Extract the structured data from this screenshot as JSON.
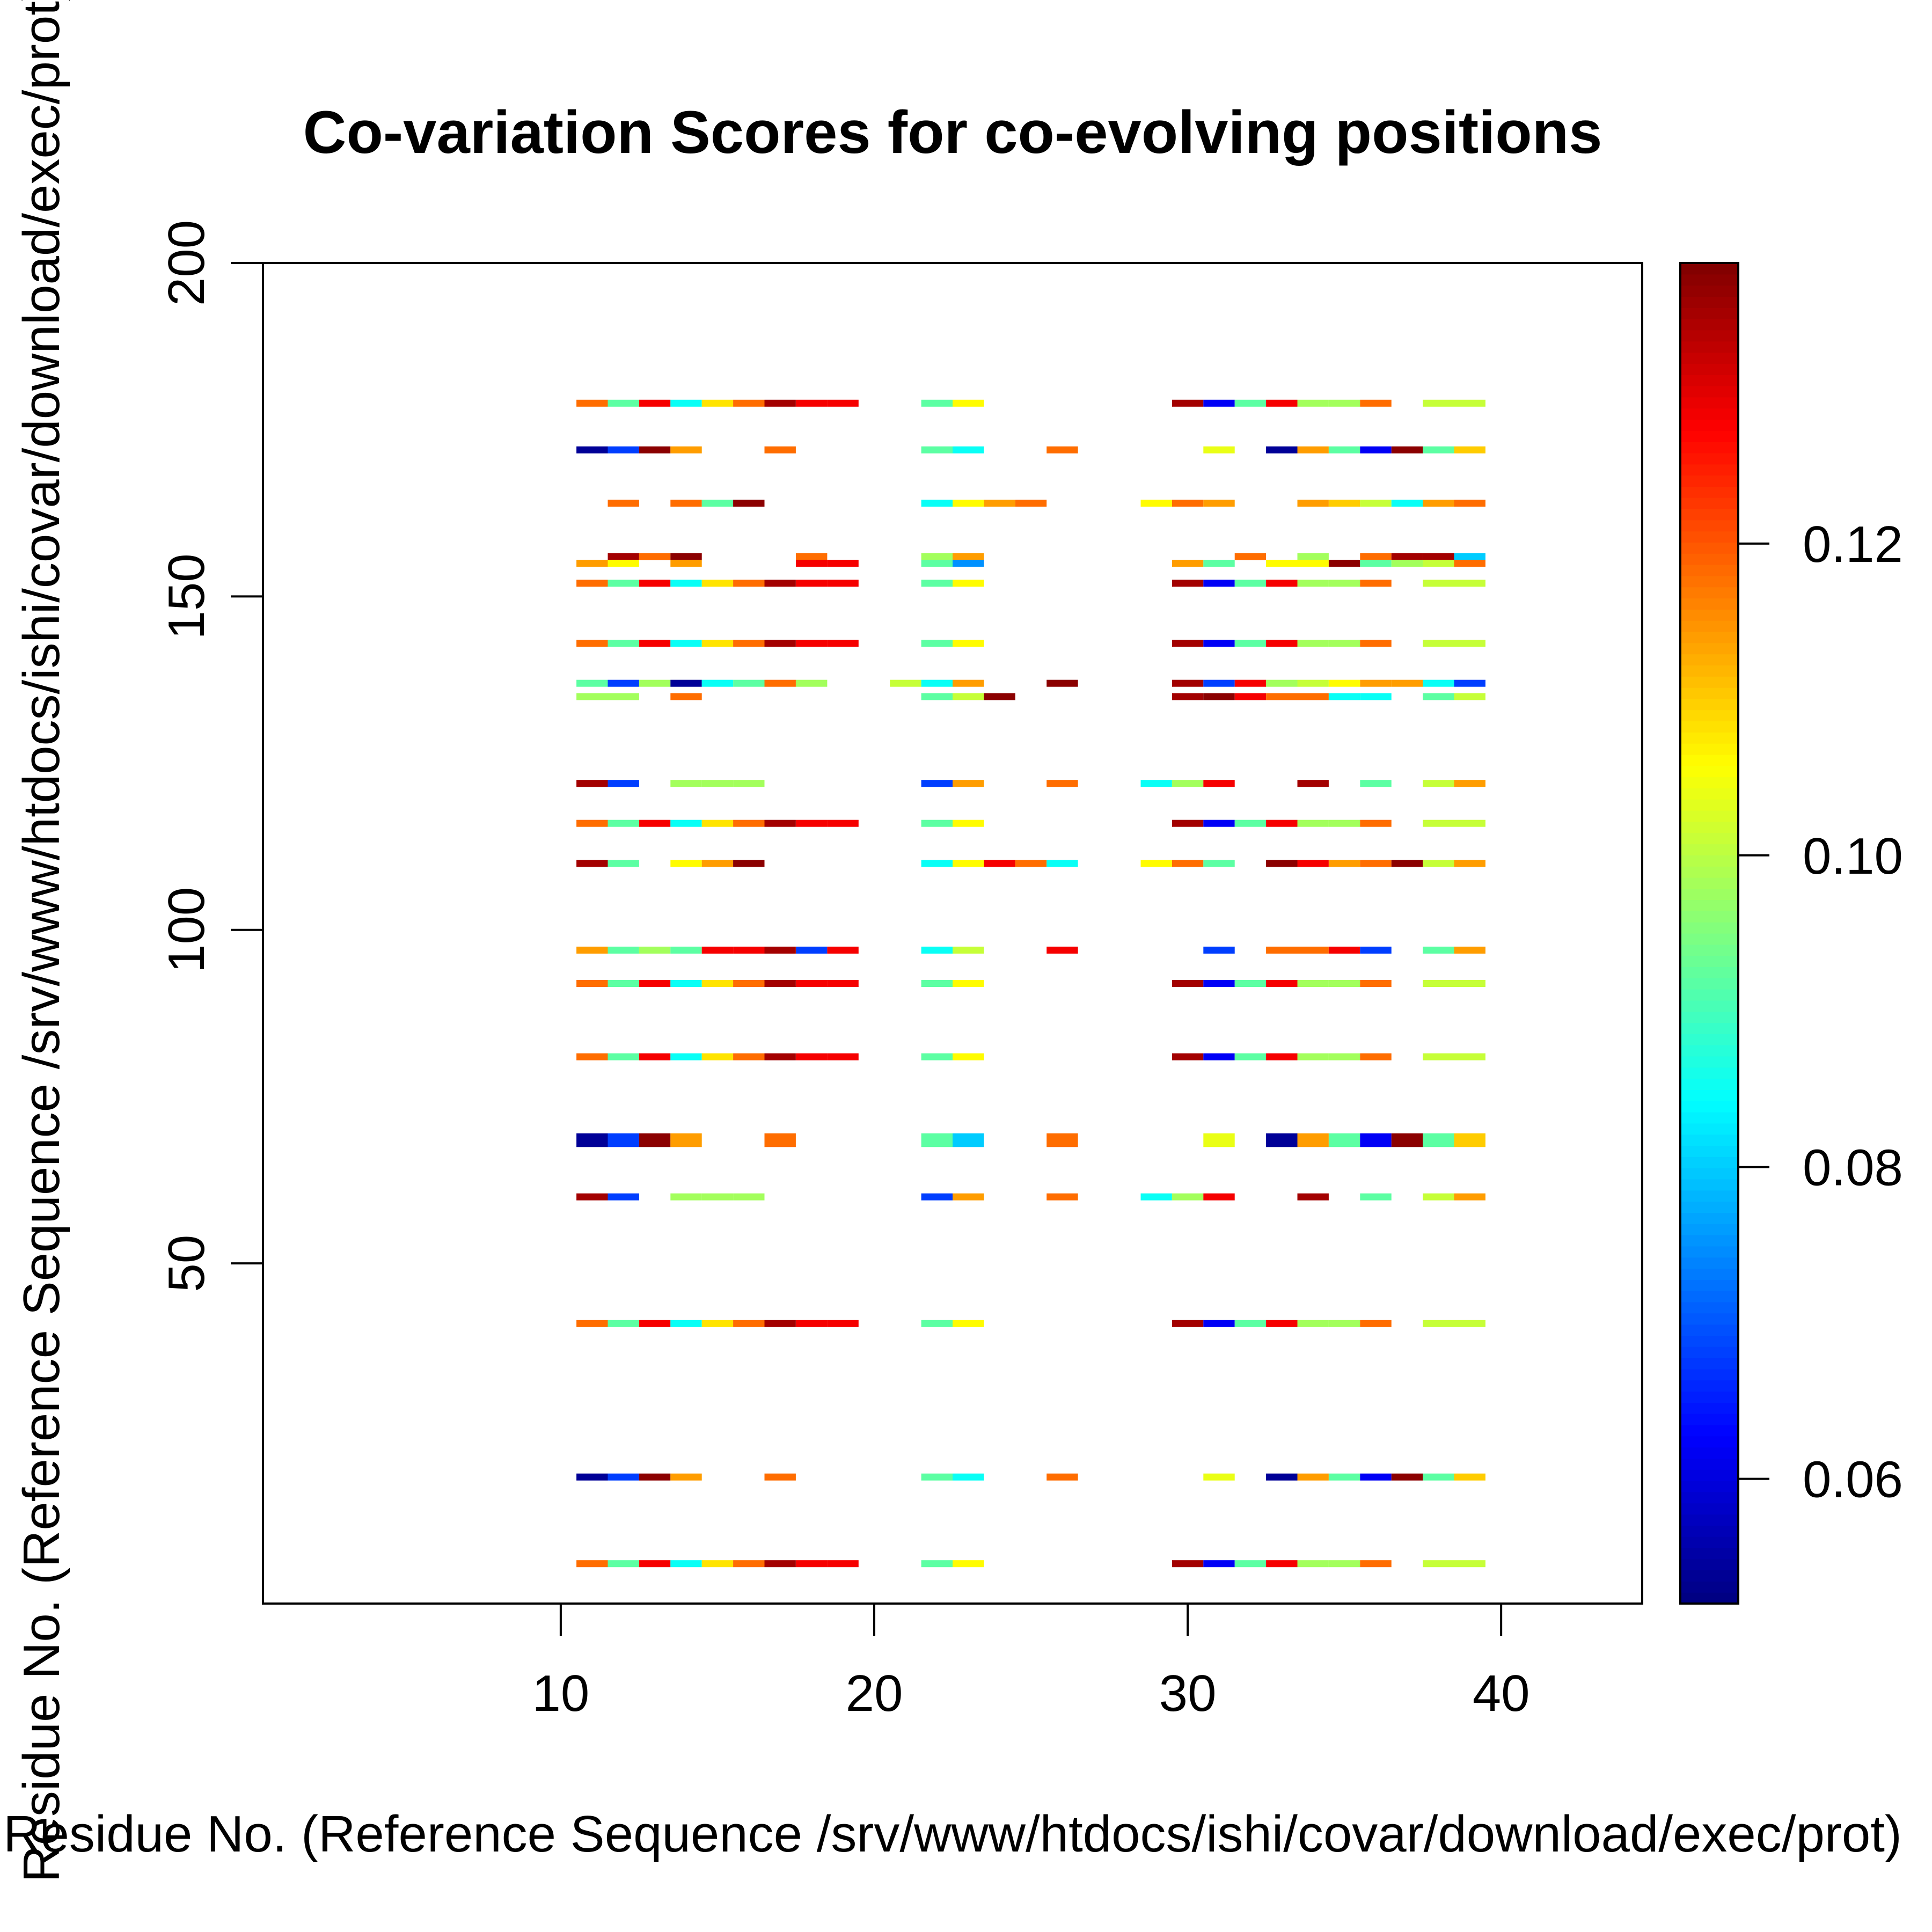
{
  "chart_data": {
    "type": "heatmap",
    "title": "Co-variation Scores for co-evolving positions",
    "xlabel": "Residue No. (Reference Sequence /srv/www/htdocs/ishi/covar/download/exec/prot)",
    "ylabel": "Residue No. (Reference Sequence /srv/www/htdocs/ishi/covar/download/exec/prot)",
    "xlim": [
      0.5,
      44.5
    ],
    "ylim": [
      -1,
      200
    ],
    "x_ticks": [
      10,
      20,
      30,
      40
    ],
    "x_tick_labels": [
      "10",
      "20",
      "30",
      "40"
    ],
    "y_ticks": [
      50,
      100,
      150,
      200
    ],
    "y_tick_labels": [
      "50",
      "100",
      "150",
      "200"
    ],
    "colorbar": {
      "range": [
        0.052,
        0.138
      ],
      "ticks": [
        0.06,
        0.08,
        0.1,
        0.12
      ],
      "tick_labels": [
        "0.06",
        "0.08",
        "0.10",
        "0.12"
      ],
      "colors": [
        "#00007F",
        "#0000FF",
        "#007FFF",
        "#00FFFF",
        "#7FFF7F",
        "#FFFF00",
        "#FF7F00",
        "#FF0000",
        "#7F0000"
      ]
    },
    "grid": false,
    "cells": [
      {
        "y": 179,
        "x": [
          11,
          12,
          13,
          14,
          15,
          16,
          17,
          18,
          19
        ],
        "v": [
          0.118,
          0.092,
          0.128,
          0.085,
          0.108,
          0.118,
          0.135,
          0.128,
          0.128
        ]
      },
      {
        "y": 179,
        "x": [
          22,
          23
        ],
        "v": [
          0.092,
          0.106
        ]
      },
      {
        "y": 179,
        "x": [
          30,
          31,
          32,
          33,
          34,
          35,
          36,
          38,
          39
        ],
        "v": [
          0.135,
          0.062,
          0.092,
          0.128,
          0.098,
          0.098,
          0.118,
          0.101,
          0.101
        ]
      },
      {
        "y": 172,
        "x": [
          11,
          12,
          13,
          14,
          17
        ],
        "v": [
          0.054,
          0.068,
          0.137,
          0.114,
          0.118
        ]
      },
      {
        "y": 172,
        "x": [
          22,
          23,
          26
        ],
        "v": [
          0.092,
          0.085,
          0.118
        ]
      },
      {
        "y": 172,
        "x": [
          31,
          33,
          34,
          35,
          36,
          37,
          38,
          39
        ],
        "v": [
          0.104,
          0.054,
          0.114,
          0.092,
          0.062,
          0.137,
          0.092,
          0.11
        ]
      },
      {
        "y": 164,
        "x": [
          12,
          14,
          15,
          16
        ],
        "v": [
          0.118,
          0.118,
          0.092,
          0.137
        ]
      },
      {
        "y": 164,
        "x": [
          22,
          23,
          24,
          25
        ],
        "v": [
          0.085,
          0.106,
          0.114,
          0.118
        ]
      },
      {
        "y": 164,
        "x": [
          29,
          30,
          31,
          34,
          35,
          36,
          37,
          38,
          39
        ],
        "v": [
          0.106,
          0.118,
          0.114,
          0.114,
          0.11,
          0.101,
          0.085,
          0.114,
          0.118
        ]
      },
      {
        "y": 156,
        "x": [
          12,
          13,
          14,
          18
        ],
        "v": [
          0.135,
          0.118,
          0.137,
          0.118
        ]
      },
      {
        "y": 156,
        "x": [
          22,
          23
        ],
        "v": [
          0.098,
          0.114
        ]
      },
      {
        "y": 156,
        "x": [
          32,
          34,
          36,
          37,
          38,
          39
        ],
        "v": [
          0.118,
          0.098,
          0.118,
          0.135,
          0.135,
          0.08
        ]
      },
      {
        "y": 155,
        "x": [
          11,
          12,
          14,
          18,
          19
        ],
        "v": [
          0.114,
          0.106,
          0.114,
          0.128,
          0.128
        ]
      },
      {
        "y": 155,
        "x": [
          22,
          23
        ],
        "v": [
          0.092,
          0.075
        ]
      },
      {
        "y": 155,
        "x": [
          30,
          31,
          33,
          34,
          35,
          36,
          37,
          38,
          39
        ],
        "v": [
          0.114,
          0.092,
          0.106,
          0.106,
          0.137,
          0.092,
          0.098,
          0.101,
          0.118
        ]
      },
      {
        "y": 152,
        "x": [
          11,
          12,
          13,
          14,
          15,
          16,
          17,
          18,
          19
        ],
        "v": [
          0.118,
          0.092,
          0.128,
          0.085,
          0.108,
          0.118,
          0.135,
          0.128,
          0.128
        ]
      },
      {
        "y": 152,
        "x": [
          22,
          23
        ],
        "v": [
          0.092,
          0.106
        ]
      },
      {
        "y": 152,
        "x": [
          30,
          31,
          32,
          33,
          34,
          35,
          36,
          38,
          39
        ],
        "v": [
          0.135,
          0.062,
          0.092,
          0.128,
          0.098,
          0.098,
          0.118,
          0.101,
          0.101
        ]
      },
      {
        "y": 143,
        "x": [
          11,
          12,
          13,
          14,
          15,
          16,
          17,
          18,
          19
        ],
        "v": [
          0.118,
          0.092,
          0.128,
          0.085,
          0.108,
          0.118,
          0.135,
          0.128,
          0.128
        ]
      },
      {
        "y": 143,
        "x": [
          22,
          23
        ],
        "v": [
          0.092,
          0.106
        ]
      },
      {
        "y": 143,
        "x": [
          30,
          31,
          32,
          33,
          34,
          35,
          36,
          38,
          39
        ],
        "v": [
          0.135,
          0.062,
          0.092,
          0.128,
          0.098,
          0.098,
          0.118,
          0.101,
          0.101
        ]
      },
      {
        "y": 137,
        "x": [
          11,
          12,
          13,
          14,
          15,
          16,
          17,
          18
        ],
        "v": [
          0.092,
          0.068,
          0.098,
          0.054,
          0.085,
          0.092,
          0.118,
          0.098
        ]
      },
      {
        "y": 137,
        "x": [
          21,
          22,
          23,
          26
        ],
        "v": [
          0.101,
          0.085,
          0.114,
          0.137
        ]
      },
      {
        "y": 137,
        "x": [
          30,
          31,
          32,
          33,
          34,
          35,
          36,
          37,
          38,
          39
        ],
        "v": [
          0.135,
          0.068,
          0.128,
          0.098,
          0.101,
          0.106,
          0.114,
          0.114,
          0.085,
          0.068
        ]
      },
      {
        "y": 135,
        "x": [
          11,
          12,
          14
        ],
        "v": [
          0.098,
          0.098,
          0.118
        ]
      },
      {
        "y": 135,
        "x": [
          22,
          23,
          24
        ],
        "v": [
          0.092,
          0.101,
          0.137
        ]
      },
      {
        "y": 135,
        "x": [
          30,
          31,
          32,
          33,
          34,
          35,
          36,
          38,
          39
        ],
        "v": [
          0.135,
          0.137,
          0.128,
          0.118,
          0.118,
          0.085,
          0.085,
          0.092,
          0.101
        ]
      },
      {
        "y": 122,
        "x": [
          11,
          12,
          14,
          15,
          16
        ],
        "v": [
          0.135,
          0.068,
          0.098,
          0.098,
          0.098
        ]
      },
      {
        "y": 122,
        "x": [
          22,
          23,
          26
        ],
        "v": [
          0.068,
          0.114,
          0.118
        ]
      },
      {
        "y": 122,
        "x": [
          29,
          30,
          31,
          34,
          36,
          38,
          39
        ],
        "v": [
          0.085,
          0.098,
          0.128,
          0.135,
          0.092,
          0.101,
          0.114
        ]
      },
      {
        "y": 116,
        "x": [
          11,
          12,
          13,
          14,
          15,
          16,
          17,
          18,
          19
        ],
        "v": [
          0.118,
          0.092,
          0.128,
          0.085,
          0.108,
          0.118,
          0.135,
          0.128,
          0.128
        ]
      },
      {
        "y": 116,
        "x": [
          22,
          23
        ],
        "v": [
          0.092,
          0.106
        ]
      },
      {
        "y": 116,
        "x": [
          30,
          31,
          32,
          33,
          34,
          35,
          36,
          38,
          39
        ],
        "v": [
          0.135,
          0.062,
          0.092,
          0.128,
          0.098,
          0.098,
          0.118,
          0.101,
          0.101
        ]
      },
      {
        "y": 110,
        "x": [
          11,
          12,
          14,
          15,
          16
        ],
        "v": [
          0.135,
          0.092,
          0.106,
          0.114,
          0.137
        ]
      },
      {
        "y": 110,
        "x": [
          22,
          23,
          24,
          25,
          26
        ],
        "v": [
          0.085,
          0.106,
          0.128,
          0.118,
          0.085
        ]
      },
      {
        "y": 110,
        "x": [
          29,
          30,
          31,
          33,
          34,
          35,
          36,
          37,
          38,
          39
        ],
        "v": [
          0.106,
          0.118,
          0.092,
          0.137,
          0.128,
          0.114,
          0.118,
          0.137,
          0.101,
          0.114
        ]
      },
      {
        "y": 97,
        "x": [
          11,
          12,
          13,
          14,
          15,
          16,
          17,
          18,
          19
        ],
        "v": [
          0.114,
          0.092,
          0.098,
          0.092,
          0.128,
          0.128,
          0.135,
          0.068,
          0.128
        ]
      },
      {
        "y": 97,
        "x": [
          22,
          23,
          26
        ],
        "v": [
          0.085,
          0.101,
          0.128
        ]
      },
      {
        "y": 97,
        "x": [
          31,
          33,
          34,
          35,
          36,
          38,
          39
        ],
        "v": [
          0.068,
          0.118,
          0.118,
          0.128,
          0.068,
          0.092,
          0.114
        ]
      },
      {
        "y": 92,
        "x": [
          11,
          12,
          13,
          14,
          15,
          16,
          17,
          18,
          19
        ],
        "v": [
          0.118,
          0.092,
          0.128,
          0.085,
          0.108,
          0.118,
          0.135,
          0.128,
          0.128
        ]
      },
      {
        "y": 92,
        "x": [
          22,
          23
        ],
        "v": [
          0.092,
          0.106
        ]
      },
      {
        "y": 92,
        "x": [
          30,
          31,
          32,
          33,
          34,
          35,
          36,
          38,
          39
        ],
        "v": [
          0.135,
          0.062,
          0.092,
          0.128,
          0.098,
          0.098,
          0.118,
          0.101,
          0.101
        ]
      },
      {
        "y": 81,
        "x": [
          11,
          12,
          13,
          14,
          15,
          16,
          17,
          18,
          19
        ],
        "v": [
          0.118,
          0.092,
          0.128,
          0.085,
          0.108,
          0.118,
          0.135,
          0.128,
          0.128
        ]
      },
      {
        "y": 81,
        "x": [
          22,
          23
        ],
        "v": [
          0.092,
          0.106
        ]
      },
      {
        "y": 81,
        "x": [
          30,
          31,
          32,
          33,
          34,
          35,
          36,
          38,
          39
        ],
        "v": [
          0.135,
          0.062,
          0.092,
          0.128,
          0.098,
          0.098,
          0.118,
          0.101,
          0.101
        ]
      },
      {
        "y": 69,
        "x": [
          11,
          12,
          13,
          14,
          17
        ],
        "v": [
          0.054,
          0.068,
          0.137,
          0.114,
          0.118
        ]
      },
      {
        "y": 69,
        "x": [
          22,
          23,
          26
        ],
        "v": [
          0.092,
          0.08,
          0.118
        ]
      },
      {
        "y": 69,
        "x": [
          31,
          33,
          34,
          35,
          36,
          37,
          38,
          39
        ],
        "v": [
          0.104,
          0.054,
          0.114,
          0.092,
          0.062,
          0.137,
          0.092,
          0.11
        ]
      },
      {
        "y": 68,
        "x": [
          11,
          12,
          13,
          14,
          17
        ],
        "v": [
          0.054,
          0.068,
          0.137,
          0.114,
          0.118
        ]
      },
      {
        "y": 68,
        "x": [
          22,
          23,
          26
        ],
        "v": [
          0.092,
          0.08,
          0.118
        ]
      },
      {
        "y": 68,
        "x": [
          31,
          33,
          34,
          35,
          36,
          37,
          38,
          39
        ],
        "v": [
          0.104,
          0.054,
          0.114,
          0.092,
          0.062,
          0.137,
          0.092,
          0.11
        ]
      },
      {
        "y": 60,
        "x": [
          11,
          12,
          14,
          15,
          16
        ],
        "v": [
          0.135,
          0.068,
          0.098,
          0.098,
          0.098
        ]
      },
      {
        "y": 60,
        "x": [
          22,
          23,
          26
        ],
        "v": [
          0.068,
          0.114,
          0.118
        ]
      },
      {
        "y": 60,
        "x": [
          29,
          30,
          31,
          34,
          36,
          38,
          39
        ],
        "v": [
          0.085,
          0.098,
          0.128,
          0.135,
          0.092,
          0.101,
          0.114
        ]
      },
      {
        "y": 41,
        "x": [
          11,
          12,
          13,
          14,
          15,
          16,
          17,
          18,
          19
        ],
        "v": [
          0.118,
          0.092,
          0.128,
          0.085,
          0.108,
          0.118,
          0.135,
          0.128,
          0.128
        ]
      },
      {
        "y": 41,
        "x": [
          22,
          23
        ],
        "v": [
          0.092,
          0.106
        ]
      },
      {
        "y": 41,
        "x": [
          30,
          31,
          32,
          33,
          34,
          35,
          36,
          38,
          39
        ],
        "v": [
          0.135,
          0.062,
          0.092,
          0.128,
          0.098,
          0.098,
          0.118,
          0.101,
          0.101
        ]
      },
      {
        "y": 18,
        "x": [
          11,
          12,
          13,
          14,
          17
        ],
        "v": [
          0.054,
          0.068,
          0.137,
          0.114,
          0.118
        ]
      },
      {
        "y": 18,
        "x": [
          22,
          23,
          26
        ],
        "v": [
          0.092,
          0.085,
          0.118
        ]
      },
      {
        "y": 18,
        "x": [
          31,
          33,
          34,
          35,
          36,
          37,
          38,
          39
        ],
        "v": [
          0.104,
          0.054,
          0.114,
          0.092,
          0.062,
          0.137,
          0.092,
          0.11
        ]
      },
      {
        "y": 5,
        "x": [
          11,
          12,
          13,
          14,
          15,
          16,
          17,
          18,
          19
        ],
        "v": [
          0.118,
          0.092,
          0.128,
          0.085,
          0.108,
          0.118,
          0.135,
          0.128,
          0.128
        ]
      },
      {
        "y": 5,
        "x": [
          22,
          23
        ],
        "v": [
          0.092,
          0.106
        ]
      },
      {
        "y": 5,
        "x": [
          30,
          31,
          32,
          33,
          34,
          35,
          36,
          38,
          39
        ],
        "v": [
          0.135,
          0.062,
          0.092,
          0.128,
          0.098,
          0.098,
          0.118,
          0.101,
          0.101
        ]
      }
    ]
  }
}
